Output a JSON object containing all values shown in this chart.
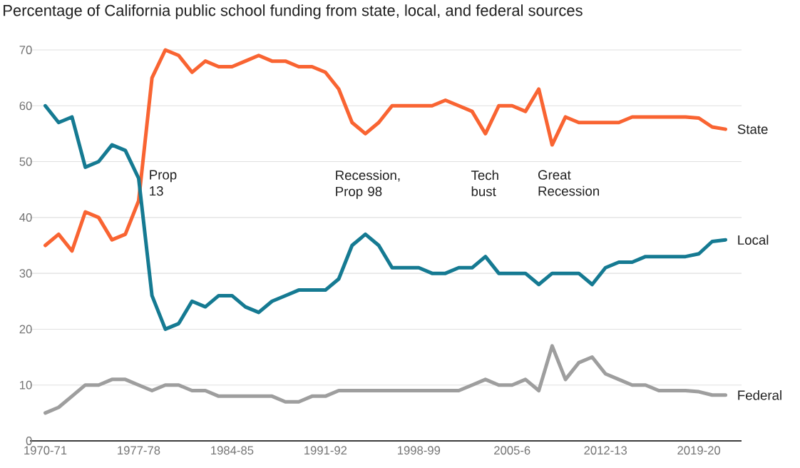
{
  "chart_data": {
    "type": "line",
    "title": "Percentage of California public school funding from state, local, and federal sources",
    "categories": [
      "1970-71",
      null,
      null,
      null,
      null,
      null,
      null,
      "1977-78",
      null,
      null,
      null,
      null,
      null,
      null,
      "1984-85",
      null,
      null,
      null,
      null,
      null,
      null,
      "1991-92",
      null,
      null,
      null,
      null,
      null,
      null,
      "1998-99",
      null,
      null,
      null,
      null,
      null,
      null,
      "2005-6",
      null,
      null,
      null,
      null,
      null,
      null,
      "2012-13",
      null,
      null,
      null,
      null,
      null,
      null,
      "2019-20",
      null,
      null
    ],
    "series": [
      {
        "name": "State",
        "color": "#f96432",
        "values": [
          35,
          37,
          34,
          41,
          40,
          36,
          37,
          43,
          65,
          70,
          69,
          66,
          68,
          67,
          67,
          68,
          69,
          68,
          68,
          67,
          67,
          66,
          63,
          57,
          55,
          57,
          60,
          60,
          60,
          60,
          61,
          60,
          59,
          55,
          60,
          60,
          59,
          63,
          53,
          58,
          57,
          57,
          57,
          57,
          58,
          58,
          58,
          58,
          58,
          57.8,
          56.2,
          55.8
        ]
      },
      {
        "name": "Local",
        "color": "#157a92",
        "values": [
          60,
          57,
          58,
          49,
          50,
          53,
          52,
          47,
          26,
          20,
          21,
          25,
          24,
          26,
          26,
          24,
          23,
          25,
          26,
          27,
          27,
          27,
          29,
          35,
          37,
          35,
          31,
          31,
          31,
          30,
          30,
          31,
          31,
          33,
          30,
          30,
          30,
          28,
          30,
          30,
          30,
          28,
          31,
          32,
          32,
          33,
          33,
          33,
          33,
          33.5,
          35.7,
          36
        ]
      },
      {
        "name": "Federal",
        "color": "#9e9e9e",
        "values": [
          5,
          6,
          8,
          10,
          10,
          11,
          11,
          10,
          9,
          10,
          10,
          9,
          9,
          8,
          8,
          8,
          8,
          8,
          7,
          7,
          8,
          8,
          9,
          9,
          9,
          9,
          9,
          9,
          9,
          9,
          9,
          9,
          10,
          11,
          10,
          10,
          11,
          9,
          17,
          11,
          14,
          15,
          12,
          11,
          10,
          10,
          9,
          9,
          9,
          8.8,
          8.2,
          8.2
        ]
      }
    ],
    "ylim": [
      0,
      70
    ],
    "yticks": [
      0,
      10,
      20,
      30,
      40,
      50,
      60,
      70
    ],
    "grid": "y",
    "legend": false,
    "marker": "none",
    "line_style": "solid",
    "annotations": [
      "Prop 13",
      "Recession, Prop 98",
      "Tech bust",
      "Great Recession"
    ]
  }
}
